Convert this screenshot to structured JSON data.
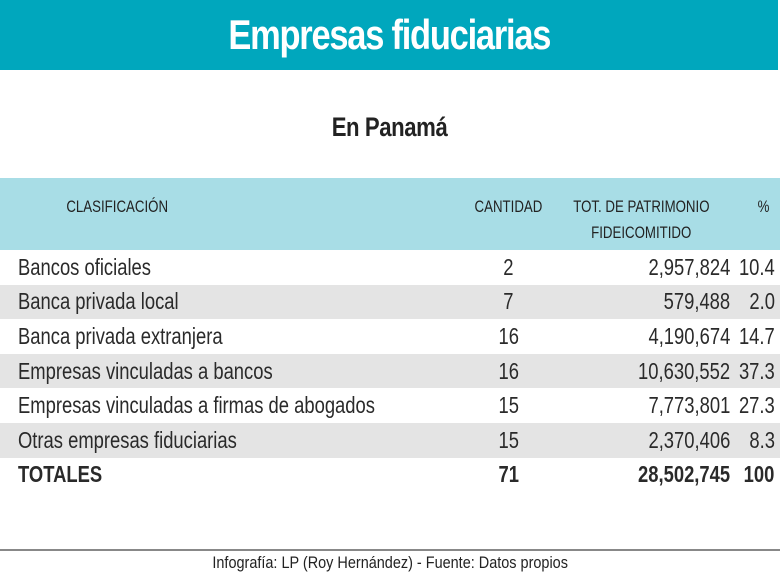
{
  "header": {
    "title": "Empresas fiduciarias",
    "subtitle": "En Panamá"
  },
  "colors": {
    "title_bar": "#00a7bd",
    "table_header": "#a8dde6",
    "row_alt": "#e4e4e4"
  },
  "table": {
    "columns": [
      "CLASIFICACIÓN",
      "CANTIDAD",
      "TOT. DE PATRIMONIO",
      "FIDEICOMITIDO",
      "%"
    ],
    "rows": [
      {
        "clasificacion": "Bancos oficiales",
        "cantidad": "2",
        "patrimonio": "2,957,824",
        "pct": "10.4"
      },
      {
        "clasificacion": "Banca privada local",
        "cantidad": "7",
        "patrimonio": "579,488",
        "pct": "2.0"
      },
      {
        "clasificacion": "Banca privada extranjera",
        "cantidad": "16",
        "patrimonio": "4,190,674",
        "pct": "14.7"
      },
      {
        "clasificacion": "Empresas vinculadas a bancos",
        "cantidad": "16",
        "patrimonio": "10,630,552",
        "pct": "37.3"
      },
      {
        "clasificacion": "Empresas vinculadas a firmas de abogados",
        "cantidad": "15",
        "patrimonio": "7,773,801",
        "pct": "27.3"
      },
      {
        "clasificacion": "Otras empresas fiduciarias",
        "cantidad": "15",
        "patrimonio": "2,370,406",
        "pct": "8.3"
      }
    ],
    "total": {
      "clasificacion": "TOTALES",
      "cantidad": "71",
      "patrimonio": "28,502,745",
      "pct": "100"
    }
  },
  "footer": {
    "credit": "Infografía: LP (Roy Hernández) - Fuente: Datos propios"
  }
}
